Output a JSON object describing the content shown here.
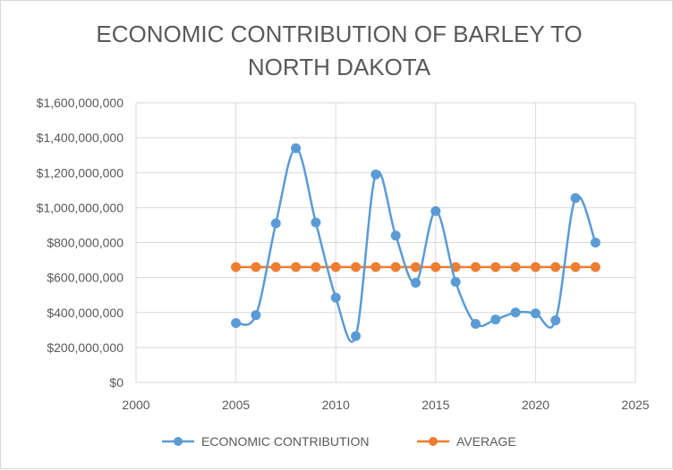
{
  "chart_data": {
    "type": "scatter",
    "title_lines": [
      "ECONOMIC CONTRIBUTION OF BARLEY TO",
      "NORTH DAKOTA"
    ],
    "xlabel": "",
    "ylabel": "",
    "xlim": [
      2000,
      2025
    ],
    "ylim": [
      0,
      1600000000
    ],
    "x_ticks": [
      2000,
      2005,
      2010,
      2015,
      2020,
      2025
    ],
    "y_ticks": [
      0,
      200000000,
      400000000,
      600000000,
      800000000,
      1000000000,
      1200000000,
      1400000000,
      1600000000
    ],
    "y_tick_labels": [
      "$0",
      "$200,000,000",
      "$400,000,000",
      "$600,000,000",
      "$800,000,000",
      "$1,000,000,000",
      "$1,200,000,000",
      "$1,400,000,000",
      "$1,600,000,000"
    ],
    "grid": "horizontal and vertical major gridlines",
    "legend_position": "bottom",
    "series": [
      {
        "name": "ECONOMIC CONTRIBUTION",
        "color": "#5b9bd5",
        "smooth": true,
        "x": [
          2005,
          2006,
          2007,
          2008,
          2009,
          2010,
          2011,
          2012,
          2013,
          2014,
          2015,
          2016,
          2017,
          2018,
          2019,
          2020,
          2021,
          2022,
          2023
        ],
        "y": [
          340000000,
          385000000,
          910000000,
          1340000000,
          915000000,
          485000000,
          265000000,
          1190000000,
          840000000,
          570000000,
          980000000,
          575000000,
          335000000,
          360000000,
          400000000,
          395000000,
          355000000,
          1055000000,
          800000000
        ]
      },
      {
        "name": "AVERAGE",
        "color": "#ed7d31",
        "smooth": false,
        "x": [
          2005,
          2006,
          2007,
          2008,
          2009,
          2010,
          2011,
          2012,
          2013,
          2014,
          2015,
          2016,
          2017,
          2018,
          2019,
          2020,
          2021,
          2022,
          2023
        ],
        "y": [
          660000000,
          660000000,
          660000000,
          660000000,
          660000000,
          660000000,
          660000000,
          660000000,
          660000000,
          660000000,
          660000000,
          660000000,
          660000000,
          660000000,
          660000000,
          660000000,
          660000000,
          660000000,
          660000000
        ]
      }
    ]
  }
}
